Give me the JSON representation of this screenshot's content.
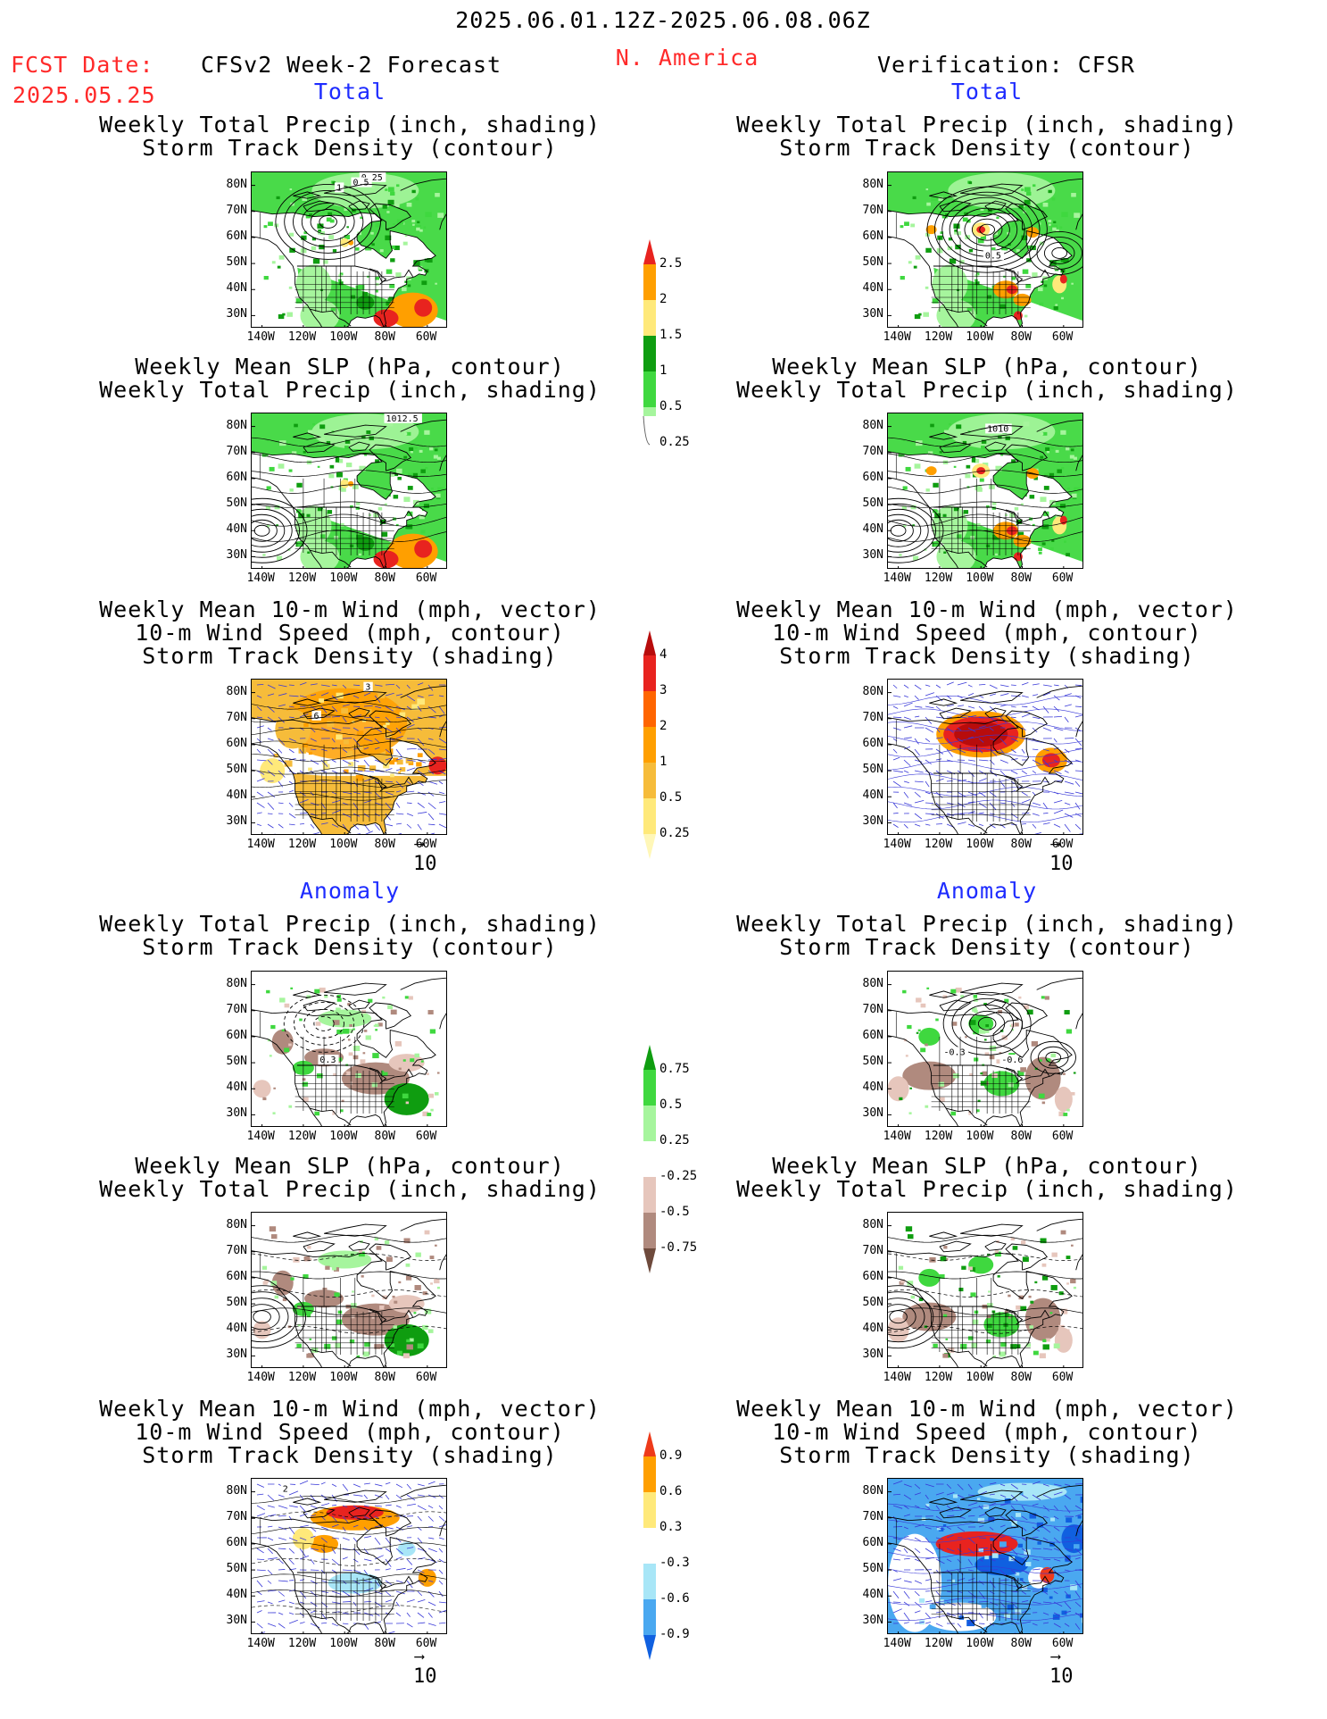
{
  "header": {
    "date_range": "2025.06.01.12Z-2025.06.08.06Z",
    "fcst_label": "FCST Date:",
    "fcst_date": "2025.05.25",
    "model": "CFSv2 Week-2 Forecast",
    "region": "N. America",
    "verification": "Verification: CFSR"
  },
  "sections": {
    "total": "Total",
    "anomaly": "Anomaly"
  },
  "titles": {
    "precip_storm": [
      "Weekly Total Precip (inch, shading)",
      "Storm Track Density (contour)"
    ],
    "slp_precip": [
      "Weekly Mean SLP (hPa, contour)",
      "Weekly Total Precip (inch, shading)"
    ],
    "wind_storm": [
      "Weekly Mean 10-m Wind (mph, vector)",
      "10-m Wind Speed (mph, contour)",
      "Storm Track Density (shading)"
    ]
  },
  "axes": {
    "lat_labels": [
      "80N",
      "70N",
      "60N",
      "50N",
      "40N",
      "30N"
    ],
    "lon_labels": [
      "140W",
      "120W",
      "100W",
      "80W",
      "60W"
    ]
  },
  "vector_ref": "10",
  "contour_labels": {
    "fc_precip_total": [
      "0.25",
      "1",
      "0.5"
    ],
    "vf_precip_total": [
      "0.5"
    ],
    "fc_slp_total": [
      "1012.5"
    ],
    "vf_slp_total": [
      "1010"
    ],
    "fc_wind_total": [
      "3",
      "6"
    ],
    "fc_precip_anom": [
      "0.3"
    ],
    "vf_precip_anom": [
      "-0.3",
      "-0.6"
    ],
    "fc_wind_anom": [
      "2"
    ]
  },
  "colorbars": {
    "precip_total": {
      "labels": [
        "2.5",
        "2",
        "1.5",
        "1",
        "0.5",
        "0.25"
      ],
      "colors": [
        "#e8231f",
        "#ff9f00",
        "#ffe97a",
        "#0f9d10",
        "#3fd83f",
        "#a6f59d"
      ]
    },
    "storm_total": {
      "labels": [
        "4",
        "3",
        "2",
        "1",
        "0.5",
        "0.25"
      ],
      "colors": [
        "#b80c0c",
        "#e8231f",
        "#ff6500",
        "#ff9f00",
        "#f6bc3a",
        "#ffe97a",
        "#fff7b8"
      ]
    },
    "precip_anom": {
      "labels": [
        "0.75",
        "0.5",
        "0.25",
        "-0.25",
        "-0.5",
        "-0.75"
      ],
      "colors": [
        "#0f9d10",
        "#3fd83f",
        "#a6f59d",
        "#ffffff",
        "#e6c6bc",
        "#b08a7e",
        "#6e4a3c"
      ]
    },
    "storm_anom": {
      "labels": [
        "0.9",
        "0.6",
        "0.3",
        "-0.3",
        "-0.6",
        "-0.9"
      ],
      "colors": [
        "#ee3a1a",
        "#ff9f00",
        "#ffe97a",
        "#ffffff",
        "#a8e6f7",
        "#4aa8f0",
        "#1060e0"
      ]
    }
  }
}
